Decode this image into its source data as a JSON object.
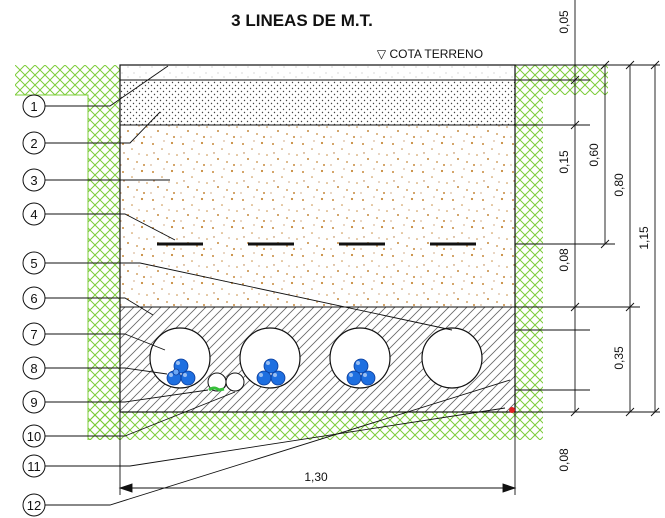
{
  "title": "3 LINEAS DE M.T.",
  "ground_level_label": "▽ COTA TERRENO",
  "callouts": [
    "1",
    "2",
    "3",
    "4",
    "5",
    "6",
    "7",
    "8",
    "9",
    "10",
    "11",
    "12"
  ],
  "dimensions": {
    "top_gap": "0,05",
    "upper_layer": "0,15",
    "tape_depth": "0,60",
    "depth_080": "0,80",
    "depth_115": "1,15",
    "upper_lower_gap": "0,08",
    "concrete_block": "0,35",
    "bottom_gap": "0,08",
    "width": "1,30"
  },
  "colors": {
    "cable_blue": "#1e6fe0",
    "soil_texture": "#c68a3c",
    "grass_hatch": "#7ccc3a",
    "earth_green": "#36c03a",
    "marker_red": "#e02020"
  }
}
